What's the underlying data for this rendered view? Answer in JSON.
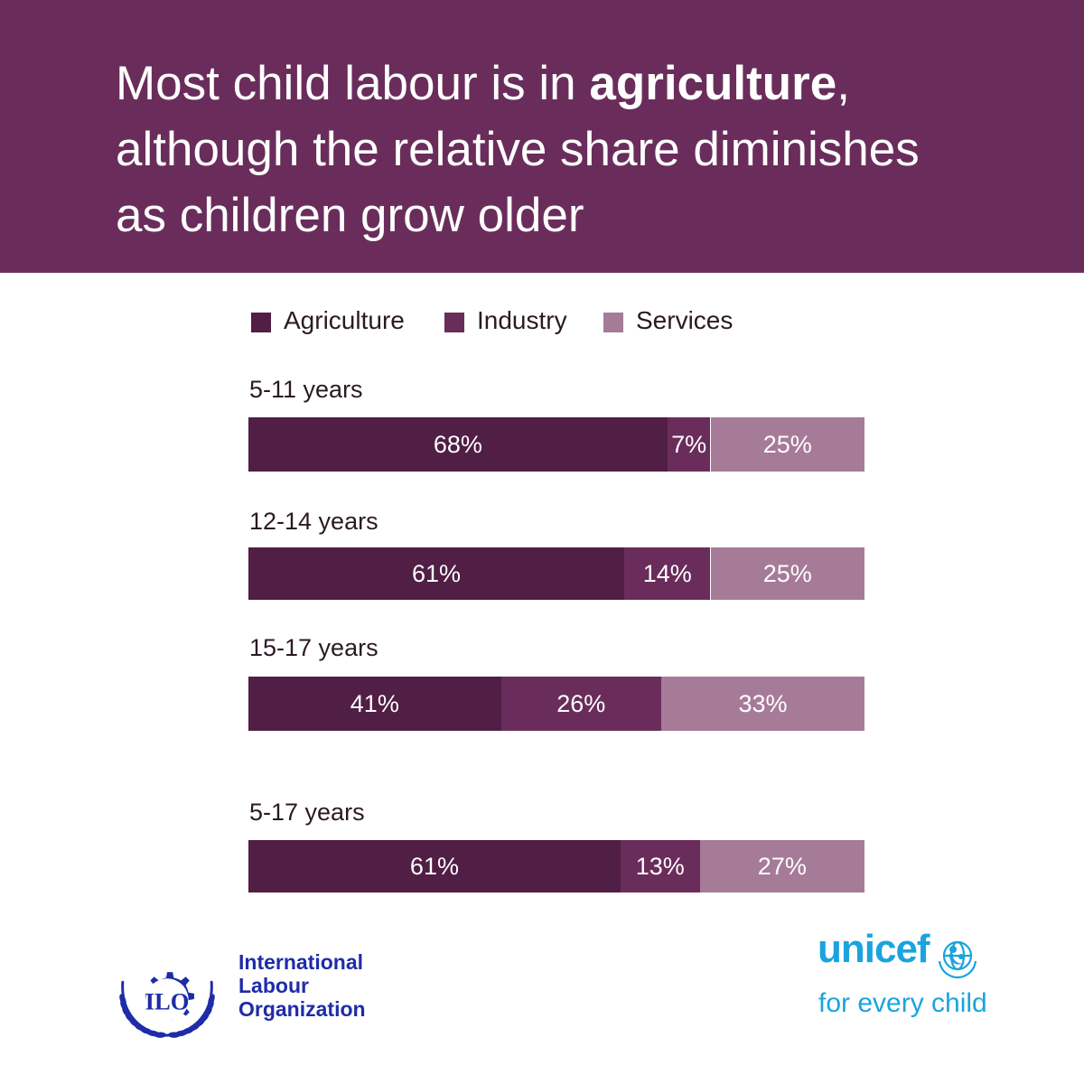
{
  "headline": {
    "line1_before": "Most child labour is in ",
    "line1_bold": "agriculture",
    "line1_after": ",",
    "line2": "although the relative share diminishes",
    "line3": "as children grow older"
  },
  "colors": {
    "banner": "#6a2d5b",
    "Agriculture": "#511e45",
    "Industry": "#6a2d5b",
    "Services": "#a67b98",
    "ilo_blue": "#1e2ca8",
    "unicef_blue": "#1aa4de"
  },
  "chart_data": {
    "type": "bar",
    "orientation": "horizontal",
    "stacked": true,
    "value_unit": "%",
    "legend": [
      "Agriculture",
      "Industry",
      "Services"
    ],
    "legend_position": "top",
    "categories": [
      "5-11 years",
      "12-14 years",
      "15-17 years",
      "5-17 years"
    ],
    "series": [
      {
        "name": "Agriculture",
        "values": [
          68,
          61,
          41,
          61
        ],
        "labels": [
          "68%",
          "61%",
          "41%",
          "61%"
        ]
      },
      {
        "name": "Industry",
        "values": [
          7,
          14,
          26,
          13
        ],
        "labels": [
          "7%",
          "14%",
          "26%",
          "13%"
        ]
      },
      {
        "name": "Services",
        "values": [
          25,
          25,
          33,
          27
        ],
        "labels": [
          "25%",
          "25%",
          "33%",
          "27%"
        ]
      }
    ]
  },
  "logos": {
    "ilo": {
      "icon": "ilo-emblem-icon",
      "mark": "ILO",
      "lines": [
        "International",
        "Labour",
        "Organization"
      ]
    },
    "unicef": {
      "word": "unicef",
      "icon": "unicef-emblem-icon",
      "tagline": "for every child"
    }
  }
}
